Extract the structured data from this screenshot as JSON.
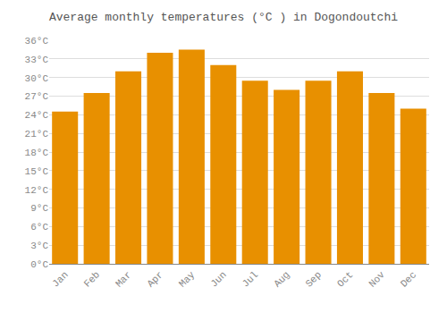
{
  "chart_data": {
    "type": "bar",
    "title": "Average monthly temperatures (°C ) in Dogondoutchi",
    "categories": [
      "Jan",
      "Feb",
      "Mar",
      "Apr",
      "May",
      "Jun",
      "Jul",
      "Aug",
      "Sep",
      "Oct",
      "Nov",
      "Dec"
    ],
    "values": [
      24.5,
      27.5,
      31.0,
      34.0,
      34.5,
      32.0,
      29.5,
      28.0,
      29.5,
      31.0,
      27.5,
      25.0
    ],
    "color": "#E89000",
    "ylim": [
      0,
      36
    ],
    "yticks": [
      {
        "value": 0,
        "label": "0°C"
      },
      {
        "value": 3,
        "label": "3°C"
      },
      {
        "value": 6,
        "label": "6°C"
      },
      {
        "value": 9,
        "label": "9°C"
      },
      {
        "value": 12,
        "label": "12°C"
      },
      {
        "value": 15,
        "label": "15°C"
      },
      {
        "value": 18,
        "label": "18°C"
      },
      {
        "value": 21,
        "label": "21°C"
      },
      {
        "value": 24,
        "label": "24°C"
      },
      {
        "value": 27,
        "label": "27°C"
      },
      {
        "value": 30,
        "label": "30°C"
      },
      {
        "value": 33,
        "label": "33°C"
      },
      {
        "value": 36,
        "label": "36°C"
      }
    ],
    "grid": true
  }
}
